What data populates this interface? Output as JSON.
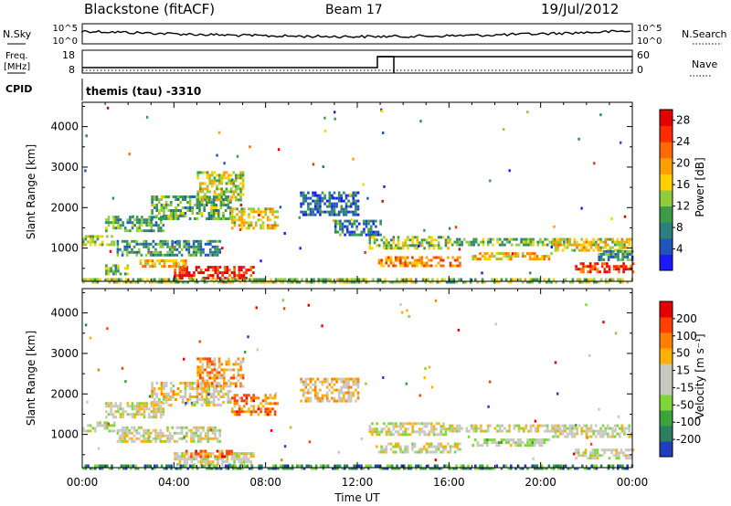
{
  "header": {
    "station": "Blackstone (fitACF)",
    "beam": "Beam 17",
    "date": "19/Jul/2012"
  },
  "strip_noise": {
    "left_label": "N.Sky",
    "right_label": "N.Search",
    "left_ticks": [
      "10^5",
      "10^0"
    ],
    "right_ticks": [
      "10^5",
      "10^0"
    ]
  },
  "strip_freq": {
    "left_label_line1": "Freq.",
    "left_label_line2": "[MHz]",
    "right_label": "Nave",
    "left_ticks": [
      "18",
      "8"
    ],
    "right_ticks": [
      "60",
      "0"
    ]
  },
  "cpid": {
    "label": "CPID",
    "value": "themis (tau) -3310"
  },
  "colors": {
    "power_scale": [
      "#1a1aff",
      "#2255bb",
      "#2a7f7f",
      "#3c9c46",
      "#8fce3a",
      "#ffd000",
      "#ffa000",
      "#ff6a00",
      "#ff2a00",
      "#e60000"
    ],
    "velocity_scale": [
      "#1f3fbf",
      "#2b7f5f",
      "#3aa33a",
      "#7fd63a",
      "#c8c8c0",
      "#c8c8c0",
      "#ffb000",
      "#ff8000",
      "#ff4000",
      "#e60000"
    ]
  },
  "chart_data": [
    {
      "type": "heatmap",
      "title": "Power",
      "ylabel": "Slant Range [km]",
      "xlabel": "",
      "x_unit": "hours UT",
      "xlim": [
        0,
        24
      ],
      "ylim": [
        180,
        4600
      ],
      "y_ticks": [
        1000,
        2000,
        3000,
        4000
      ],
      "colorbar": {
        "label": "Power [dB]",
        "range": [
          0,
          30
        ],
        "ticks": [
          "4",
          "8",
          "12",
          "16",
          "20",
          "24",
          "28"
        ]
      },
      "regions": [
        {
          "t0": 0.0,
          "t1": 1.4,
          "r0": 1050,
          "r1": 1320,
          "lvl": 0.45
        },
        {
          "t0": 1.0,
          "t1": 3.5,
          "r0": 1400,
          "r1": 1800,
          "lvl": 0.35
        },
        {
          "t0": 3.0,
          "t1": 6.5,
          "r0": 1700,
          "r1": 2300,
          "lvl": 0.35
        },
        {
          "t0": 5.0,
          "t1": 7.0,
          "r0": 2200,
          "r1": 2900,
          "lvl": 0.5
        },
        {
          "t0": 6.5,
          "t1": 8.5,
          "r0": 1500,
          "r1": 2000,
          "lvl": 0.55
        },
        {
          "t0": 1.5,
          "t1": 6.0,
          "r0": 800,
          "r1": 1200,
          "lvl": 0.3
        },
        {
          "t0": 4.0,
          "t1": 7.5,
          "r0": 260,
          "r1": 560,
          "lvl": 0.9
        },
        {
          "t0": 2.5,
          "t1": 4.5,
          "r0": 560,
          "r1": 720,
          "lvl": 0.6
        },
        {
          "t0": 1.0,
          "t1": 2.0,
          "r0": 350,
          "r1": 600,
          "lvl": 0.4
        },
        {
          "t0": 0.0,
          "t1": 24.0,
          "r0": 185,
          "r1": 260,
          "lvl": 0.45
        },
        {
          "t0": 9.5,
          "t1": 12.0,
          "r0": 1800,
          "r1": 2400,
          "lvl": 0.2
        },
        {
          "t0": 11.0,
          "t1": 13.0,
          "r0": 1300,
          "r1": 1700,
          "lvl": 0.25
        },
        {
          "t0": 12.5,
          "t1": 16.0,
          "r0": 1000,
          "r1": 1300,
          "lvl": 0.45
        },
        {
          "t0": 12.8,
          "t1": 16.5,
          "r0": 560,
          "r1": 800,
          "lvl": 0.7
        },
        {
          "t0": 16.0,
          "t1": 21.0,
          "r0": 1050,
          "r1": 1250,
          "lvl": 0.4
        },
        {
          "t0": 17.0,
          "t1": 20.5,
          "r0": 700,
          "r1": 900,
          "lvl": 0.6
        },
        {
          "t0": 20.5,
          "t1": 24.0,
          "r0": 950,
          "r1": 1250,
          "lvl": 0.55
        },
        {
          "t0": 21.5,
          "t1": 24.0,
          "r0": 400,
          "r1": 650,
          "lvl": 0.85
        },
        {
          "t0": 22.5,
          "t1": 24.0,
          "r0": 700,
          "r1": 950,
          "lvl": 0.3
        }
      ]
    },
    {
      "type": "heatmap",
      "title": "Velocity",
      "ylabel": "Slant Range [km]",
      "xlabel": "Time UT",
      "xlim": [
        0,
        24
      ],
      "ylim": [
        180,
        4600
      ],
      "x_tick_labels": [
        "00:00",
        "04:00",
        "08:00",
        "12:00",
        "16:00",
        "20:00",
        "00:00"
      ],
      "y_ticks": [
        1000,
        2000,
        3000,
        4000
      ],
      "colorbar": {
        "label": "Velocity [m s⁻¹]",
        "range": [
          -250,
          250
        ],
        "ticks": [
          "200",
          "100",
          "50",
          "15",
          "-15",
          "-50",
          "-100",
          "-200"
        ]
      },
      "regions": [
        {
          "t0": 0.0,
          "t1": 1.4,
          "r0": 1050,
          "r1": 1320,
          "lvl": 0.5
        },
        {
          "t0": 1.0,
          "t1": 3.5,
          "r0": 1400,
          "r1": 1800,
          "lvl": 0.5
        },
        {
          "t0": 3.0,
          "t1": 6.5,
          "r0": 1700,
          "r1": 2300,
          "lvl": 0.55
        },
        {
          "t0": 5.0,
          "t1": 7.0,
          "r0": 2200,
          "r1": 2900,
          "lvl": 0.7
        },
        {
          "t0": 6.5,
          "t1": 8.5,
          "r0": 1500,
          "r1": 2000,
          "lvl": 0.75
        },
        {
          "t0": 1.5,
          "t1": 6.0,
          "r0": 800,
          "r1": 1200,
          "lvl": 0.5
        },
        {
          "t0": 4.0,
          "t1": 7.5,
          "r0": 260,
          "r1": 560,
          "lvl": 0.5
        },
        {
          "t0": 4.5,
          "t1": 6.5,
          "r0": 480,
          "r1": 620,
          "lvl": 0.75
        },
        {
          "t0": 0.0,
          "t1": 24.0,
          "r0": 185,
          "r1": 260,
          "lvl": 0.2
        },
        {
          "t0": 9.5,
          "t1": 12.0,
          "r0": 1800,
          "r1": 2400,
          "lvl": 0.6
        },
        {
          "t0": 12.5,
          "t1": 16.0,
          "r0": 1000,
          "r1": 1300,
          "lvl": 0.5
        },
        {
          "t0": 12.8,
          "t1": 16.5,
          "r0": 560,
          "r1": 800,
          "lvl": 0.5
        },
        {
          "t0": 16.0,
          "t1": 21.0,
          "r0": 1050,
          "r1": 1250,
          "lvl": 0.5
        },
        {
          "t0": 17.0,
          "t1": 20.5,
          "r0": 700,
          "r1": 900,
          "lvl": 0.45
        },
        {
          "t0": 20.5,
          "t1": 24.0,
          "r0": 950,
          "r1": 1250,
          "lvl": 0.5
        },
        {
          "t0": 21.5,
          "t1": 24.0,
          "r0": 400,
          "r1": 650,
          "lvl": 0.5
        }
      ]
    }
  ]
}
